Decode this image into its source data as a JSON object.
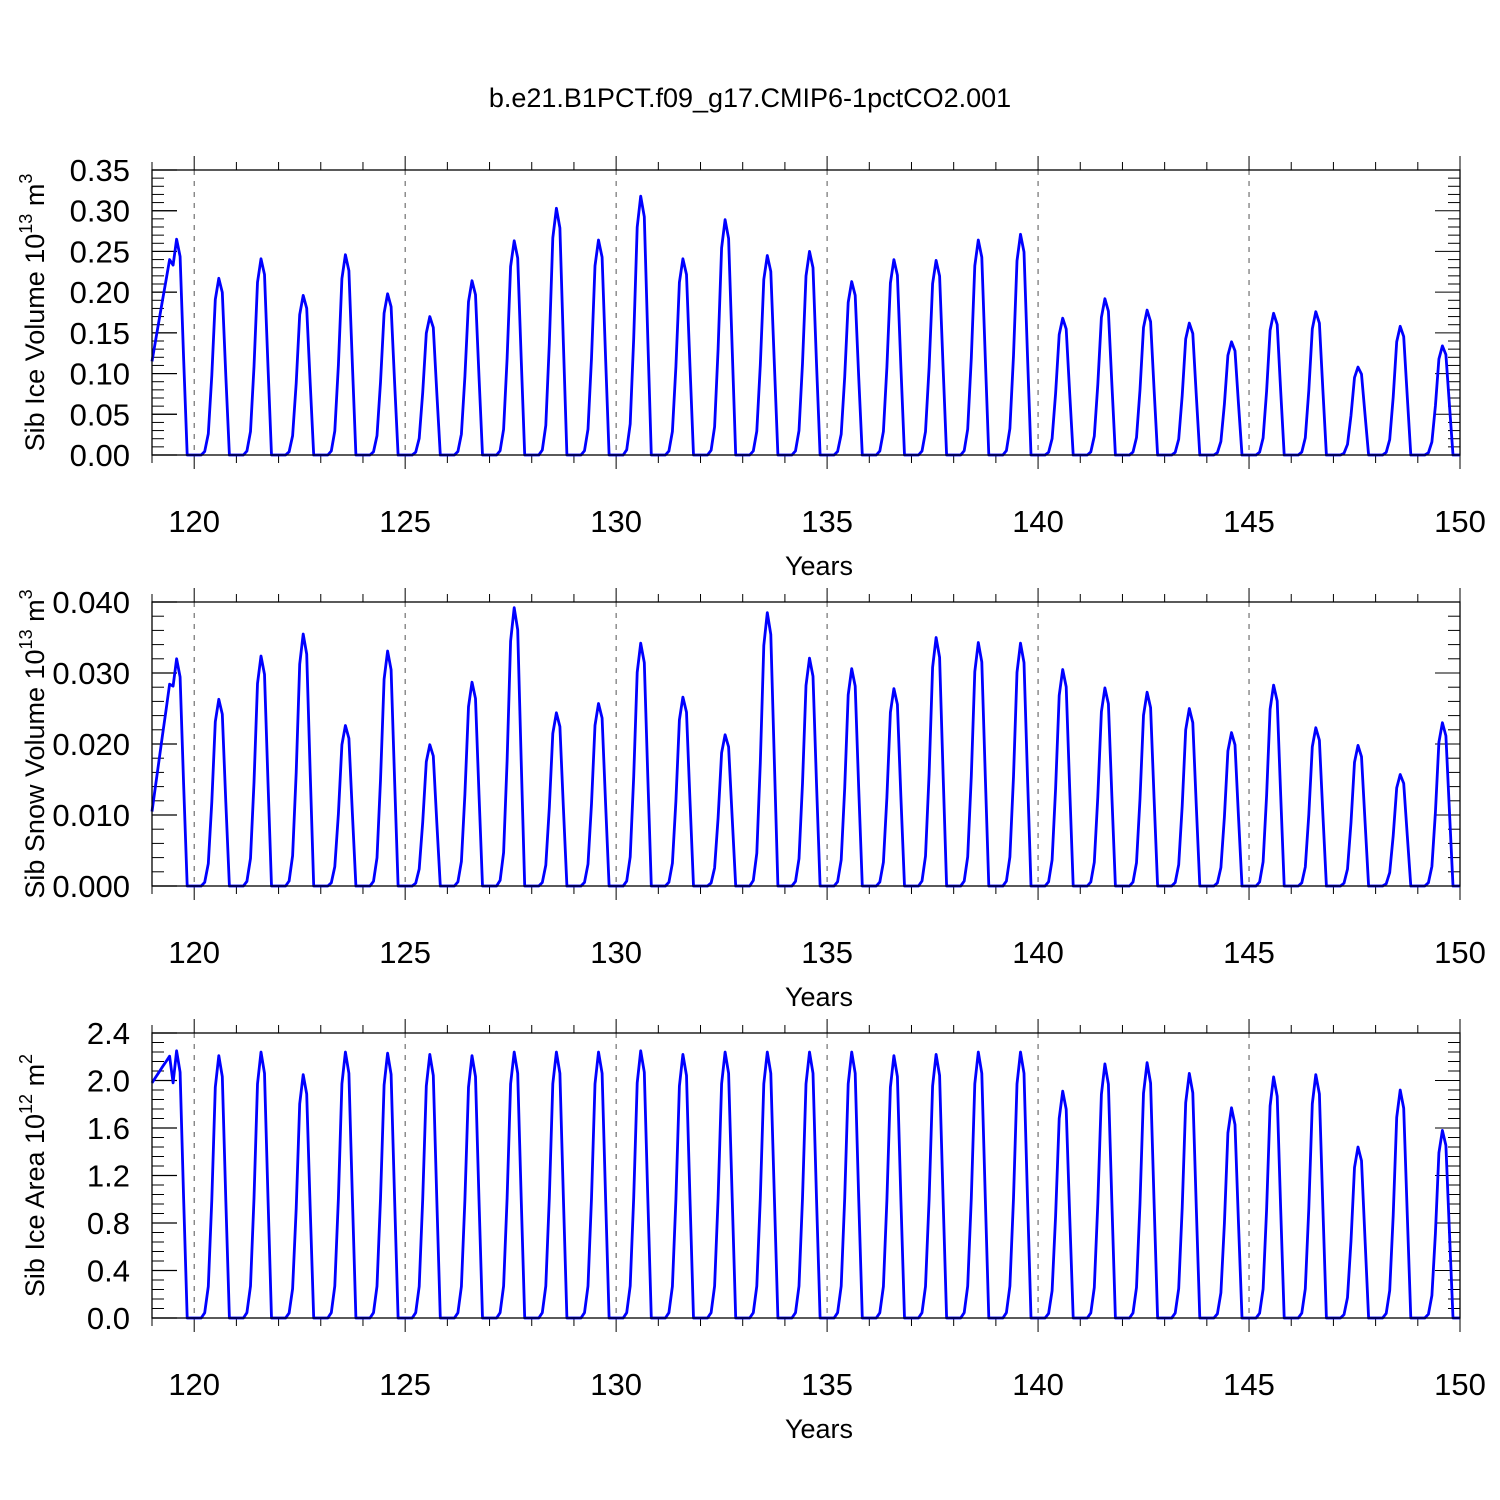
{
  "title": "b.e21.B1PCT.f09_g17.CMIP6-1pctCO2.001",
  "line_color": "#0000ff",
  "chart_data": [
    {
      "type": "line",
      "ylabel": "Sib Ice Volume 10",
      "ylabel_exp": "13",
      "ylabel_unit": "m",
      "ylabel_unit_exp": "3",
      "xlabel": "Years",
      "xlim": [
        119.0,
        150.0
      ],
      "ylim": [
        0.0,
        0.35
      ],
      "xticks": [
        120,
        125,
        130,
        135,
        140,
        145,
        150
      ],
      "xtick_labels": [
        "120",
        "125",
        "130",
        "135",
        "140",
        "145",
        "150"
      ],
      "yticks": [
        0.0,
        0.05,
        0.1,
        0.15,
        0.2,
        0.25,
        0.3,
        0.35
      ],
      "ytick_labels": [
        "0.00",
        "0.05",
        "0.10",
        "0.15",
        "0.20",
        "0.25",
        "0.30",
        "0.35"
      ],
      "grid": "dashed vertical lines at labeled years",
      "series": [
        {
          "peaks": [
            0.265,
            0.217,
            0.241,
            0.196,
            0.246,
            0.198,
            0.17,
            0.214,
            0.263,
            0.303,
            0.264,
            0.318,
            0.241,
            0.289,
            0.245,
            0.25,
            0.213,
            0.24,
            0.239,
            0.264,
            0.271,
            0.168,
            0.192,
            0.178,
            0.162,
            0.139,
            0.174,
            0.176,
            0.108,
            0.158,
            0.134
          ],
          "start": 0.115
        }
      ]
    },
    {
      "type": "line",
      "ylabel": "Sib Snow Volume 10",
      "ylabel_exp": "13",
      "ylabel_unit": "m",
      "ylabel_unit_exp": "3",
      "xlabel": "Years",
      "xlim": [
        119.0,
        150.0
      ],
      "ylim": [
        0.0,
        0.04
      ],
      "xticks": [
        120,
        125,
        130,
        135,
        140,
        145,
        150
      ],
      "xtick_labels": [
        "120",
        "125",
        "130",
        "135",
        "140",
        "145",
        "150"
      ],
      "yticks": [
        0.0,
        0.01,
        0.02,
        0.03,
        0.04
      ],
      "ytick_labels": [
        "0.000",
        "0.010",
        "0.020",
        "0.030",
        "0.040"
      ],
      "grid": "dashed vertical lines at labeled years",
      "series": [
        {
          "peaks": [
            0.032,
            0.0263,
            0.0324,
            0.0355,
            0.0226,
            0.0331,
            0.0199,
            0.0287,
            0.0392,
            0.0244,
            0.0257,
            0.0342,
            0.0266,
            0.0213,
            0.0385,
            0.0321,
            0.0306,
            0.0278,
            0.035,
            0.0343,
            0.0342,
            0.0305,
            0.0279,
            0.0273,
            0.025,
            0.0216,
            0.0283,
            0.0223,
            0.0198,
            0.0157,
            0.023
          ],
          "start": 0.0105
        }
      ]
    },
    {
      "type": "line",
      "ylabel": "Sib Ice Area 10",
      "ylabel_exp": "12",
      "ylabel_unit": "m",
      "ylabel_unit_exp": "2",
      "xlabel": "Years",
      "xlim": [
        119.0,
        150.0
      ],
      "ylim": [
        0.0,
        2.4
      ],
      "xticks": [
        120,
        125,
        130,
        135,
        140,
        145,
        150
      ],
      "xtick_labels": [
        "120",
        "125",
        "130",
        "135",
        "140",
        "145",
        "150"
      ],
      "yticks": [
        0.0,
        0.4,
        0.8,
        1.2,
        1.6,
        2.0,
        2.4
      ],
      "ytick_labels": [
        "0.0",
        "0.4",
        "0.8",
        "1.2",
        "1.6",
        "2.0",
        "2.4"
      ],
      "grid": "dashed vertical lines at labeled years",
      "series": [
        {
          "peaks": [
            2.25,
            2.21,
            2.24,
            2.05,
            2.24,
            2.23,
            2.22,
            2.21,
            2.24,
            2.24,
            2.24,
            2.25,
            2.22,
            2.24,
            2.24,
            2.24,
            2.24,
            2.21,
            2.22,
            2.24,
            2.24,
            1.91,
            2.14,
            2.15,
            2.06,
            1.77,
            2.03,
            2.05,
            1.44,
            1.92,
            1.58
          ],
          "start": 1.98
        }
      ]
    }
  ]
}
